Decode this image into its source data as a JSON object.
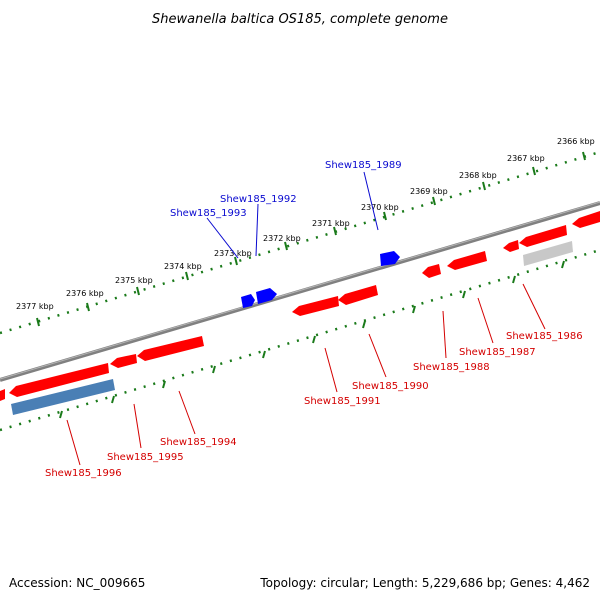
{
  "title": "Shewanella baltica OS185, complete genome",
  "footer": {
    "accession": "Accession: NC_009665",
    "summary": "Topology: circular; Length: 5,229,686 bp; Genes: 4,462"
  },
  "scale_labels": [
    "2366 kbp",
    "2367 kbp",
    "2368 kbp",
    "2369 kbp",
    "2370 kbp",
    "2371 kbp",
    "2372 kbp",
    "2373 kbp",
    "2374 kbp",
    "2375 kbp",
    "2376 kbp",
    "2377 kbp"
  ],
  "gene_labels_forward": [
    "Shew185_1989",
    "Shew185_1992",
    "Shew185_1993"
  ],
  "gene_labels_reverse": [
    "Shew185_1986",
    "Shew185_1987",
    "Shew185_1988",
    "Shew185_1990",
    "Shew185_1991",
    "Shew185_1994",
    "Shew185_1995",
    "Shew185_1996"
  ],
  "colors": {
    "forward_gene": "#0000ff",
    "reverse_gene": "#ff0000",
    "pseudo_gene": "#c8c8c8",
    "rna_gene": "#4a7fb5",
    "backbone": "#808080",
    "scale_ticks": "#1a7a1a",
    "forward_label": "#0a0ad0",
    "reverse_label": "#d40000"
  }
}
